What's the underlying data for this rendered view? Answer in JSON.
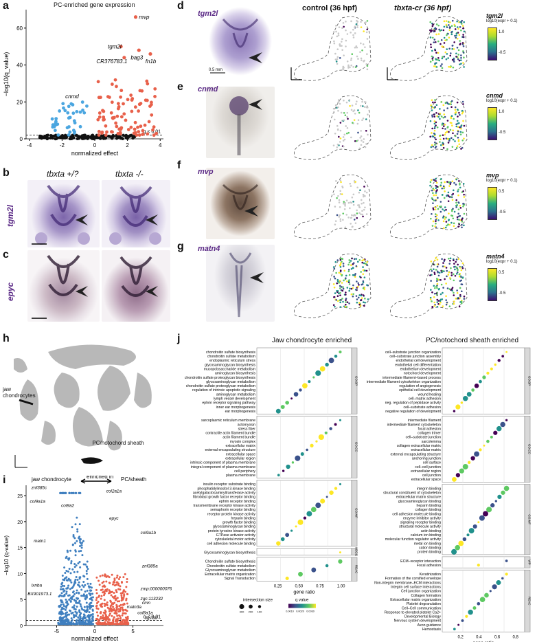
{
  "panels": {
    "a": "a",
    "b": "b",
    "c": "c",
    "d": "d",
    "e": "e",
    "f": "f",
    "g": "g",
    "h": "h",
    "i": "i",
    "j": "j"
  },
  "a": {
    "title": "PC-enriched gene expression",
    "ylabel": "−log10(q_value)",
    "xlabel": "normalized effect",
    "threshold": "q < 0.01",
    "yticks": [
      "0",
      "20",
      "40",
      "60"
    ],
    "xticks": [
      "-4",
      "-2",
      "0",
      "2",
      "4"
    ],
    "genes": [
      "mvp",
      "tgm2l",
      "bag3",
      "CR376783.1",
      "fn1b",
      "cnmd"
    ]
  },
  "b": {
    "col1": "tbxta +/?",
    "col2": "tbxta -/-",
    "row": "tgm2l"
  },
  "c": {
    "row": "epyc"
  },
  "d": {
    "gene": "tgm2l",
    "scale": "0.5 mm",
    "col_control": "control (36 hpf)",
    "col_tbxta": "tbxta-cr (36 hpf)"
  },
  "e": {
    "gene": "cnmd"
  },
  "f": {
    "gene": "mvp"
  },
  "g": {
    "gene": "matn4"
  },
  "legends": [
    {
      "gene": "tgm2l",
      "unit": "log10(expr + 0.1)",
      "hi": "1.0",
      "lo": "-0.5"
    },
    {
      "gene": "cnmd",
      "unit": "log10(expr + 0.1)",
      "hi": "1.0",
      "lo": "-0.5"
    },
    {
      "gene": "mvp",
      "unit": "log10(expr + 0.1)",
      "hi": "0.5",
      "lo": "-0.5"
    },
    {
      "gene": "matn4",
      "unit": "log10(expr + 0.1)",
      "hi": "0.5",
      "lo": "-0.5"
    }
  ],
  "h": {
    "jaw": "jaw chondrocytes",
    "pc": "PC/notochord sheath"
  },
  "i": {
    "left": "jaw chondrocyte",
    "mid": "enriched in",
    "right": "PC/sheath",
    "ylabel": "−log10 (q-value)",
    "xlabel": "normalized effect",
    "threshold": "q < 0.01",
    "yticks": [
      "0",
      "5",
      "10",
      "15",
      "20",
      "25"
    ],
    "xticks": [
      "-5",
      "0",
      "5"
    ],
    "genes_left": [
      "znf385c",
      "col9a1a",
      "col9a2",
      "matn1",
      "lxnba",
      "BX901973.1"
    ],
    "genes_right": [
      "col2a1a",
      "epyc",
      "col9a1b",
      "znf385a",
      "zmp:0000000760",
      "zgc:113232",
      "matn3a",
      "cmn",
      "col8a1a",
      "lgsf10"
    ]
  },
  "j": {
    "title_left": "Jaw chondrocyte enriched",
    "title_right": "PC/notochord sheath enriched",
    "xlabel": "gene ratio",
    "xticks_left": [
      "0.25",
      "0.50",
      "0.75",
      "1.00"
    ],
    "xticks_right": [
      "0.2",
      "0.4",
      "0.6",
      "0.8"
    ],
    "size_title": "intersection size",
    "q_title": "q value",
    "size_left": [
      "300",
      "200",
      "100"
    ],
    "q_left": [
      "0.0010",
      "0.0020",
      "0.0030"
    ],
    "size_right": [
      "200",
      "150",
      "100",
      "50"
    ],
    "q_right": [
      "0.0010",
      "0.0020",
      "0.0030"
    ],
    "strips_left": [
      "GO:BP",
      "GO:CC",
      "GO:MF",
      "KEGG",
      "REAC"
    ],
    "strips_right": [
      "GO:BP",
      "GO:CC",
      "GO:MF",
      "WP",
      "REAC"
    ],
    "left_groups": [
      [
        "chondroitin sulfate biosynthesis",
        "chondroitin sulfate metabolism",
        "endoplasmic reticulum stress",
        "glycosaminoglycan biosynthesis",
        "mucopolysaccharide metabolism",
        "aminoglycan biosynthesis",
        "chondroitin sulfate proteoglycan biosynthesis",
        "glycosaminoglycan metabolism",
        "chondroitin sulfate proteoglycan metabolism",
        "regulation of intrinsic apoptotic signaling",
        "aminoglycan metabolism",
        "lymph vessel development",
        "ephrin receptor signaling pathway",
        "inner ear morphogenesis",
        "ear morphogenesis"
      ],
      [
        "sarcoplasmic reticulum membrane",
        "actomyosin",
        "stress fiber",
        "contractile actin filament bundle",
        "actin filament bundle",
        "myosin complex",
        "extracellular matrix",
        "external encapsulating structure",
        "extracellular space",
        "extracellular region",
        "intrinsic component of plasma membrane",
        "integral component of plasma membrane",
        "cell periphery",
        "plasma membrane"
      ],
      [
        "insulin receptor substrate binding",
        "phosphatidylinositol 3-kinase binding",
        "acetylgalactosaminyltransferase activity",
        "fibroblast growth factor receptor binding",
        "ephrin receptor binding",
        "transmembrane receptor kinase activity",
        "semaphorin receptor binding",
        "receptor protein kinase activity",
        "heparin binding",
        "growth factor binding",
        "glycosaminoglycan binding",
        "protein tyrosine kinase activity",
        "GTPase activator activity",
        "cytoskeletal motor activity",
        "cell adhesion molecule binding"
      ],
      [
        "Glycosaminoglycan biosynthesis"
      ],
      [
        "Chondroitin sulfate biosynthesis",
        "Chondroitin sulfate metabolism",
        "Glycosaminoglycan metabolism",
        "Extracellular matrix organization",
        "Signal Transduction"
      ]
    ],
    "right_groups": [
      [
        "cell–substrate junction organization",
        "cell–substrate junction assembly",
        "endothelial cell development",
        "endothelial cell differentiation",
        "endothelium development",
        "notochord development",
        "intermediate filament–based process",
        "intermediate filament cytoskeleton organization",
        "regulation of angiogenesis",
        "epithelial cell development",
        "wound healing",
        "cell–matrix adhesion",
        "neg. regulation of peptidase activity",
        "cell–substrate adhesion",
        "negative regulation of development"
      ],
      [
        "intermediate filament",
        "intermediate filament cytoskeleton",
        "focal adhesion",
        "collagen trimer",
        "cell–substrate junction",
        "sarcolemma",
        "collagen extracellular matrix",
        "extracellular matrix",
        "external encapsulating structure",
        "anchoring junction",
        "cell surface",
        "cell–cell junction",
        "extracellular region",
        "cell junction",
        "extracellular space"
      ],
      [
        "integrin binding",
        "structural constituent of cytoskeleton",
        "extracellular matrix structure",
        "glycosaminoglycan binding",
        "heparin binding",
        "collagen binding",
        "cell adhesion molecule binding",
        "enzyme inhibitor activity",
        "signaling receptor binding",
        "structural molecule activity",
        "actin binding",
        "calcium ion binding",
        "molecular function regulator activity",
        "metal ion binding",
        "cation binding",
        "protein binding"
      ],
      [
        "ECM–receptor interaction",
        "Focal adhesion"
      ],
      [
        "Keratinization",
        "Formation of the cornified envelope",
        "Non-integrin membrane–ECM interactions",
        "Integrin cell surface interactions",
        "Cell junction organization",
        "Collagen formation",
        "Extracellular matrix organization",
        "Platelet degranulation",
        "Cell–Cell communication",
        "Response to elevated platelet Ca2+",
        "Developmental Biology",
        "Nervous system development",
        "Axon guidance",
        "Hemostasis"
      ]
    ]
  }
}
